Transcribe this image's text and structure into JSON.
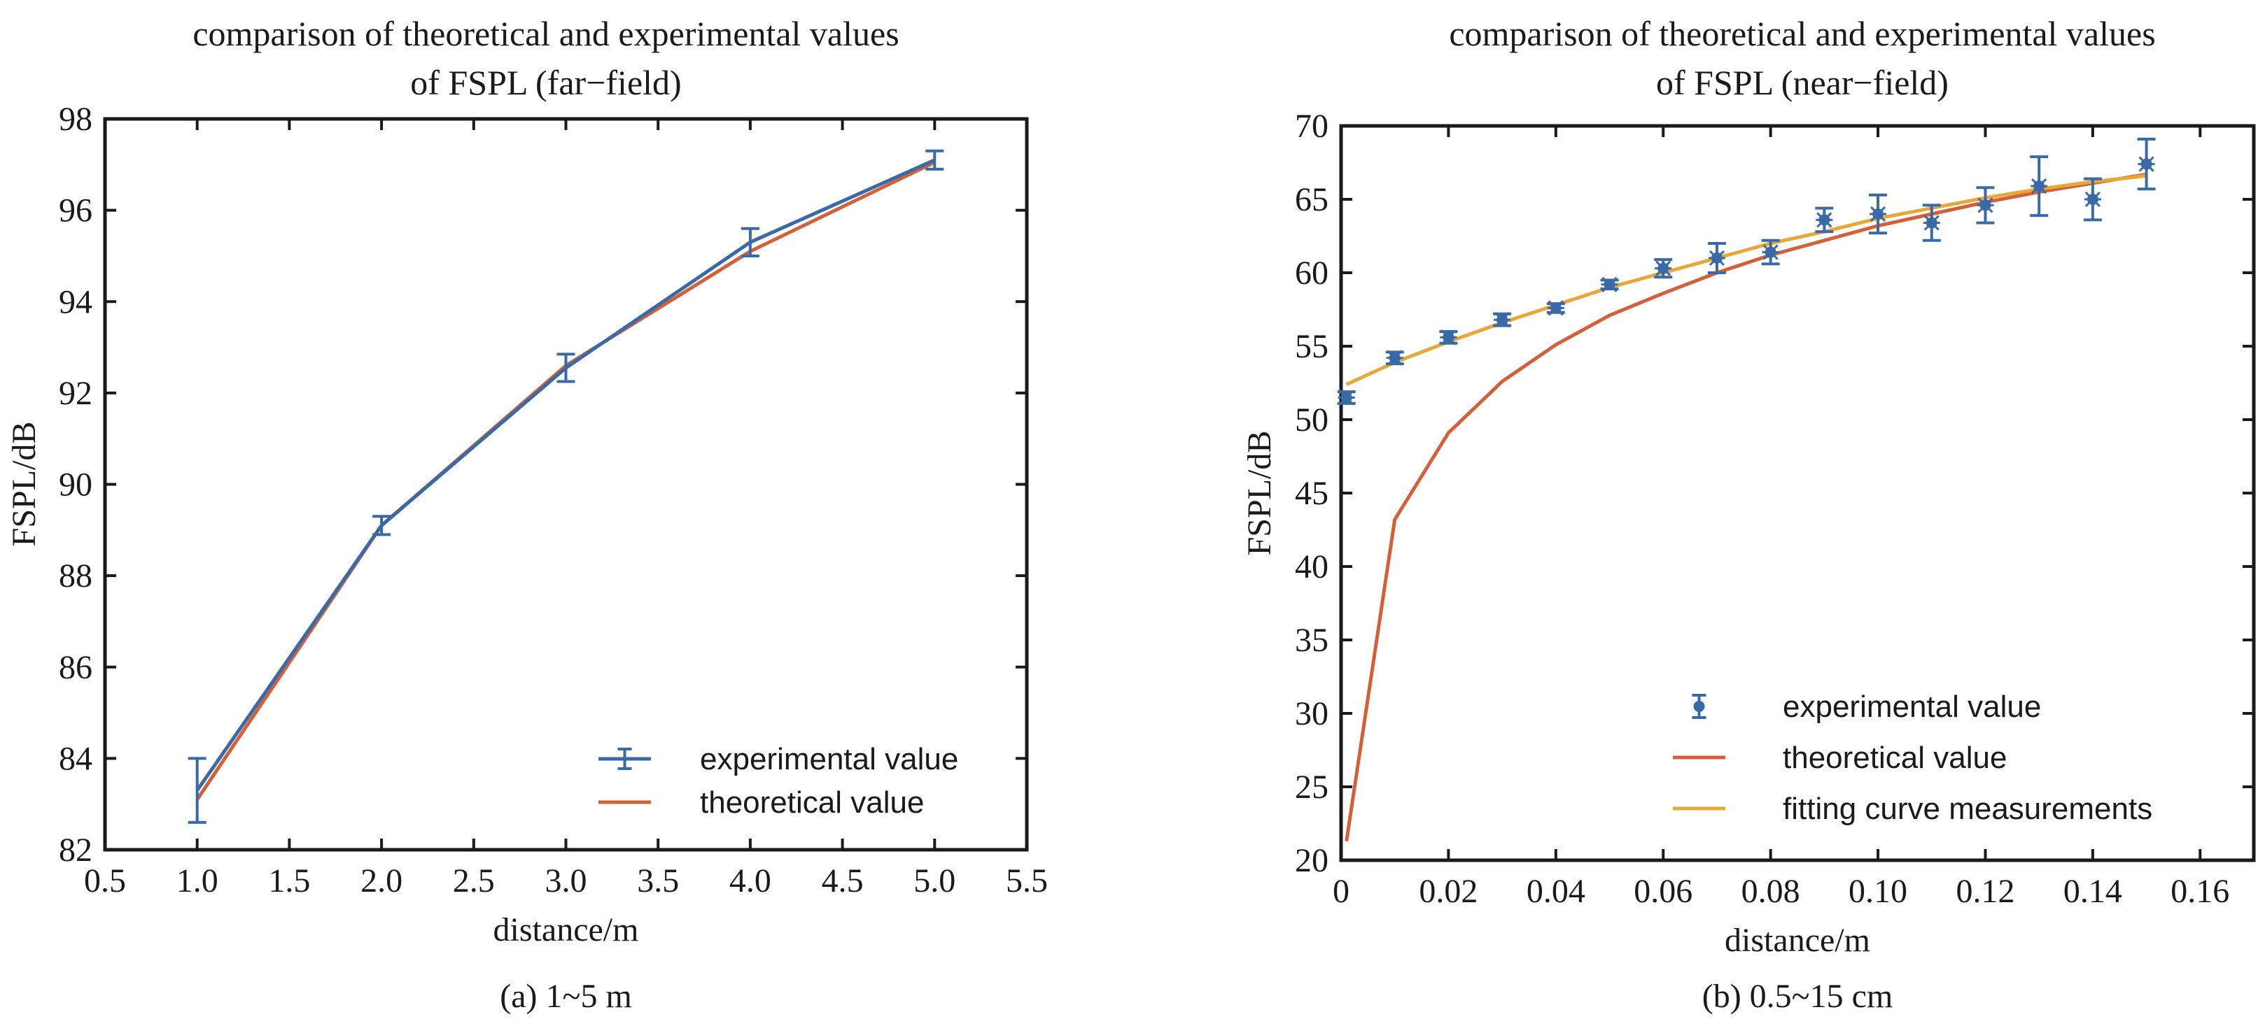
{
  "colors": {
    "experimental": "#3a6aa6",
    "theoretical": "#d4603a",
    "fitting": "#e8a838",
    "axis": "#1a1a1a"
  },
  "chart_data": [
    {
      "type": "line",
      "title_lines": [
        "comparison of theoretical and experimental values",
        "of FSPL (far−field)"
      ],
      "xlabel": "distance/m",
      "ylabel": "FSPL/dB",
      "caption": "(a) 1~5 m",
      "xlim": [
        0.5,
        5.5
      ],
      "ylim": [
        82,
        98
      ],
      "xticks": [
        "0.5",
        "1.0",
        "1.5",
        "2.0",
        "2.5",
        "3.0",
        "3.5",
        "4.0",
        "4.5",
        "5.0",
        "5.5"
      ],
      "yticks": [
        "82",
        "84",
        "86",
        "88",
        "90",
        "92",
        "94",
        "96",
        "98"
      ],
      "legend_position": "bottom-right",
      "series": [
        {
          "name": "experimental value",
          "kind": "errorbar-line",
          "color_key": "experimental",
          "x": [
            1.0,
            2.0,
            3.0,
            4.0,
            5.0
          ],
          "y": [
            83.3,
            89.1,
            92.55,
            95.3,
            97.1
          ],
          "yerr": [
            0.7,
            0.2,
            0.3,
            0.3,
            0.2
          ]
        },
        {
          "name": "theoretical value",
          "kind": "line",
          "color_key": "theoretical",
          "x": [
            1.0,
            2.0,
            3.0,
            4.0,
            5.0
          ],
          "y": [
            83.1,
            89.1,
            92.6,
            95.1,
            97.05
          ]
        }
      ]
    },
    {
      "type": "line",
      "title_lines": [
        "comparison of theoretical and experimental values",
        "of FSPL (near−field)"
      ],
      "xlabel": "distance/m",
      "ylabel": "FSPL/dB",
      "caption": "(b) 0.5~15 cm",
      "xlim": [
        0,
        0.17
      ],
      "ylim": [
        20,
        70
      ],
      "xticks": [
        "0",
        "0.02",
        "0.04",
        "0.06",
        "0.08",
        "0.10",
        "0.12",
        "0.14",
        "0.16"
      ],
      "yticks": [
        "20",
        "25",
        "30",
        "35",
        "40",
        "45",
        "50",
        "55",
        "60",
        "65",
        "70"
      ],
      "legend_position": "bottom-right",
      "series": [
        {
          "name": "experimental value",
          "kind": "errorbar-points",
          "color_key": "experimental",
          "x": [
            0.001,
            0.01,
            0.02,
            0.03,
            0.04,
            0.05,
            0.06,
            0.07,
            0.08,
            0.09,
            0.1,
            0.11,
            0.12,
            0.13,
            0.14,
            0.15
          ],
          "y": [
            51.5,
            54.2,
            55.6,
            56.8,
            57.6,
            59.2,
            60.3,
            61.0,
            61.4,
            63.6,
            64.0,
            63.4,
            64.6,
            65.9,
            65.0,
            67.4
          ],
          "yerr": [
            0.4,
            0.4,
            0.4,
            0.4,
            0.3,
            0.3,
            0.6,
            1.0,
            0.8,
            0.8,
            1.3,
            1.2,
            1.2,
            2.0,
            1.4,
            1.7
          ]
        },
        {
          "name": "theoretical value",
          "kind": "line",
          "color_key": "theoretical",
          "x": [
            0.001,
            0.01,
            0.02,
            0.03,
            0.04,
            0.05,
            0.06,
            0.07,
            0.08,
            0.09,
            0.1,
            0.11,
            0.12,
            0.13,
            0.14,
            0.15
          ],
          "y": [
            21.3,
            43.2,
            49.1,
            52.6,
            55.1,
            57.1,
            58.6,
            60.0,
            61.2,
            62.2,
            63.2,
            64.0,
            64.8,
            65.5,
            66.1,
            66.7
          ]
        },
        {
          "name": "fitting curve measurements",
          "kind": "line",
          "color_key": "fitting",
          "x": [
            0.001,
            0.01,
            0.02,
            0.03,
            0.04,
            0.05,
            0.06,
            0.07,
            0.08,
            0.09,
            0.1,
            0.11,
            0.12,
            0.13,
            0.14,
            0.15
          ],
          "y": [
            52.4,
            53.9,
            55.3,
            56.6,
            57.8,
            59.0,
            60.0,
            61.0,
            62.0,
            62.8,
            63.7,
            64.4,
            65.1,
            65.7,
            66.2,
            66.6
          ]
        }
      ]
    }
  ]
}
